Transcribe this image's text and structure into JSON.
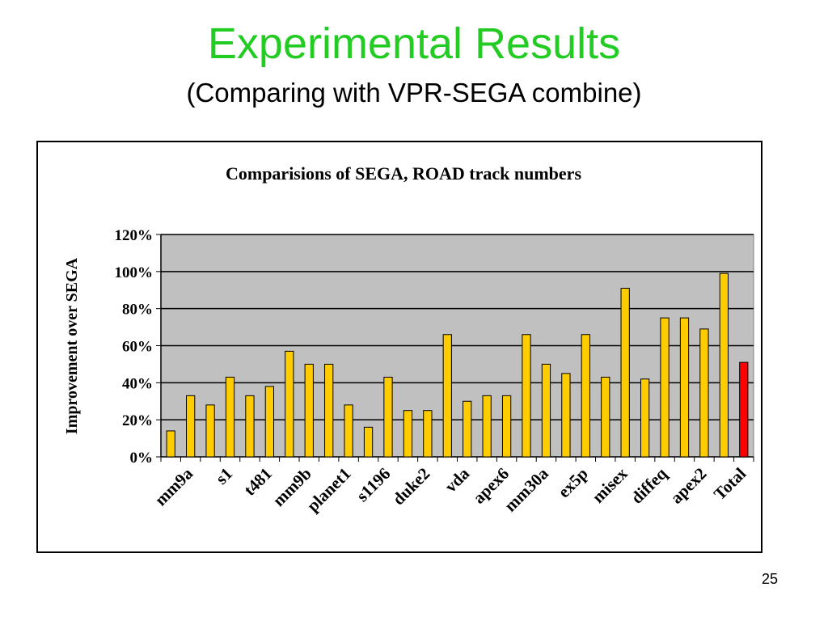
{
  "slide": {
    "title": "Experimental Results",
    "subtitle": "(Comparing with VPR-SEGA combine)",
    "page_number": "25",
    "title_color": "#22cc22"
  },
  "chart_data": {
    "type": "bar",
    "title": "Comparisions of SEGA, ROAD track numbers",
    "xlabel": "",
    "ylabel": "Improvement over SEGA",
    "ylim": [
      0,
      120
    ],
    "ytick_labels": [
      "0%",
      "20%",
      "40%",
      "60%",
      "80%",
      "100%",
      "120%"
    ],
    "grid": true,
    "legend": "none",
    "bar_color": "#ffcc00",
    "highlight_color": "#ff0000",
    "plot_background": "#c0c0c0",
    "categories": [
      "",
      "mm9a",
      "",
      "s1",
      "",
      "t481",
      "",
      "mm9b",
      "",
      "planet1",
      "",
      "s1196",
      "",
      "duke2",
      "",
      "vda",
      "",
      "apex6",
      "",
      "mm30a",
      "",
      "ex5p",
      "",
      "misex",
      "",
      "diffeq",
      "",
      "apex2",
      "",
      "Total"
    ],
    "values": [
      14,
      33,
      28,
      43,
      33,
      38,
      57,
      50,
      50,
      28,
      16,
      43,
      25,
      25,
      66,
      30,
      33,
      33,
      66,
      50,
      45,
      66,
      43,
      91,
      42,
      75,
      75,
      69,
      99,
      51
    ],
    "highlight_index": 29
  }
}
